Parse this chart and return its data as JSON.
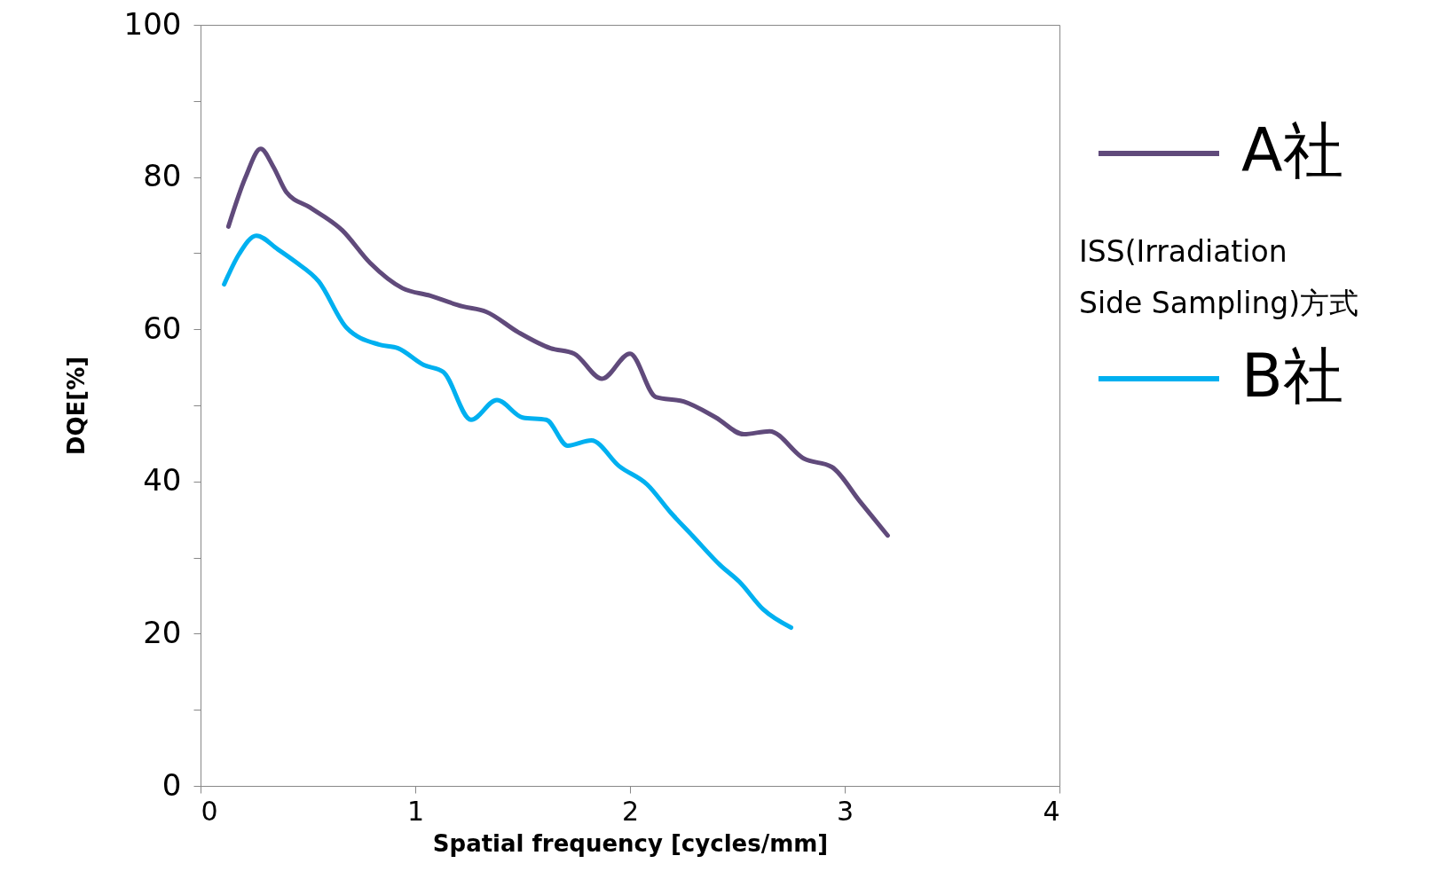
{
  "chart_data": {
    "type": "line",
    "xlabel": "Spatial frequency [cycles/mm]",
    "ylabel": "DQE[%]",
    "xlim": [
      0,
      4
    ],
    "xticks": [
      0,
      1,
      2,
      3,
      4
    ],
    "ylim": [
      0,
      100
    ],
    "yticks": [
      0,
      {
        "value": 10,
        "label": null
      },
      20,
      {
        "value": 30,
        "label": null
      },
      40,
      {
        "value": 50,
        "label": null
      },
      60,
      {
        "value": 70,
        "label": null
      },
      80,
      {
        "value": 90,
        "label": null
      },
      100
    ],
    "grid": false,
    "legend": "right",
    "line_style": "solid",
    "marker": "none",
    "annotations": [
      "ISS(Irradiation\nSide Sampling)方式"
    ],
    "series": [
      {
        "name": "A社",
        "color": "#604a7b",
        "x": [
          0.13,
          0.21,
          0.28,
          0.34,
          0.4,
          0.51,
          0.66,
          0.79,
          0.94,
          1.07,
          1.22,
          1.33,
          1.48,
          1.63,
          1.74,
          1.87,
          2.0,
          2.12,
          2.25,
          2.4,
          2.53,
          2.65,
          2.81,
          2.94,
          3.07,
          3.2
        ],
        "values": [
          73.5,
          80,
          83.7,
          81.3,
          78,
          76,
          73,
          68.7,
          65.4,
          64.4,
          63,
          62.3,
          59.6,
          57.5,
          56.8,
          53.5,
          56.8,
          51.1,
          50.5,
          48.4,
          46.2,
          46.6,
          43,
          41.9,
          37.4,
          32.9
        ]
      },
      {
        "name": "B社",
        "color": "#00b0f0",
        "x": [
          0.11,
          0.18,
          0.26,
          0.36,
          0.44,
          0.55,
          0.68,
          0.83,
          0.92,
          1.04,
          1.13,
          1.26,
          1.38,
          1.5,
          1.61,
          1.71,
          1.82,
          1.95,
          2.08,
          2.19,
          2.29,
          2.42,
          2.51,
          2.62,
          2.75
        ],
        "values": [
          65.9,
          69.9,
          72.3,
          70.5,
          68.9,
          66.3,
          60.2,
          58,
          57.5,
          55.3,
          54.4,
          48.1,
          50.7,
          48.4,
          48.1,
          44.7,
          45.4,
          42,
          39.6,
          35.9,
          32.9,
          29,
          26.8,
          23.2,
          20.8
        ]
      }
    ]
  }
}
